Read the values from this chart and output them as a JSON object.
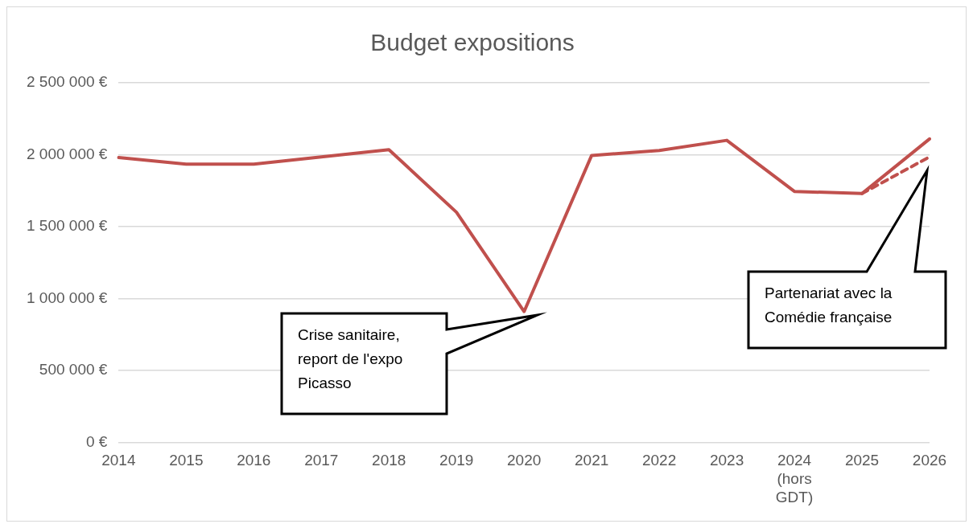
{
  "chart_data": {
    "type": "line",
    "title": "Budget expositions",
    "categories": [
      "2014",
      "2015",
      "2016",
      "2017",
      "2018",
      "2019",
      "2020",
      "2021",
      "2022",
      "2023",
      "2024 (hors GDT)",
      "2025",
      "2026"
    ],
    "series": [
      {
        "color": "#c0504d",
        "values": [
          1980000,
          1935000,
          1935000,
          1985000,
          2035000,
          1600000,
          910000,
          1995000,
          2030000,
          2100000,
          1745000,
          1730000,
          2110000
        ],
        "line_style": "solid"
      },
      {
        "color": "#c0504d",
        "values": [
          null,
          null,
          null,
          null,
          null,
          null,
          null,
          null,
          null,
          null,
          null,
          1730000,
          1985000
        ],
        "line_style": "dashed"
      }
    ],
    "ylim": [
      0,
      2500000
    ],
    "yticks": [
      {
        "value": 0,
        "label": "0 €"
      },
      {
        "value": 500000,
        "label": "500 000 €"
      },
      {
        "value": 1000000,
        "label": "1 000 000 €"
      },
      {
        "value": 1500000,
        "label": "1 500 000 €"
      },
      {
        "value": 2000000,
        "label": "2 000 000 €"
      },
      {
        "value": 2500000,
        "label": "2 500 000 €"
      }
    ],
    "grid": "y",
    "legend": false,
    "marker": "none",
    "annotations": [
      "Crise sanitaire, report de l'expo Picasso",
      "Partenariat avec la Comédie française"
    ]
  }
}
